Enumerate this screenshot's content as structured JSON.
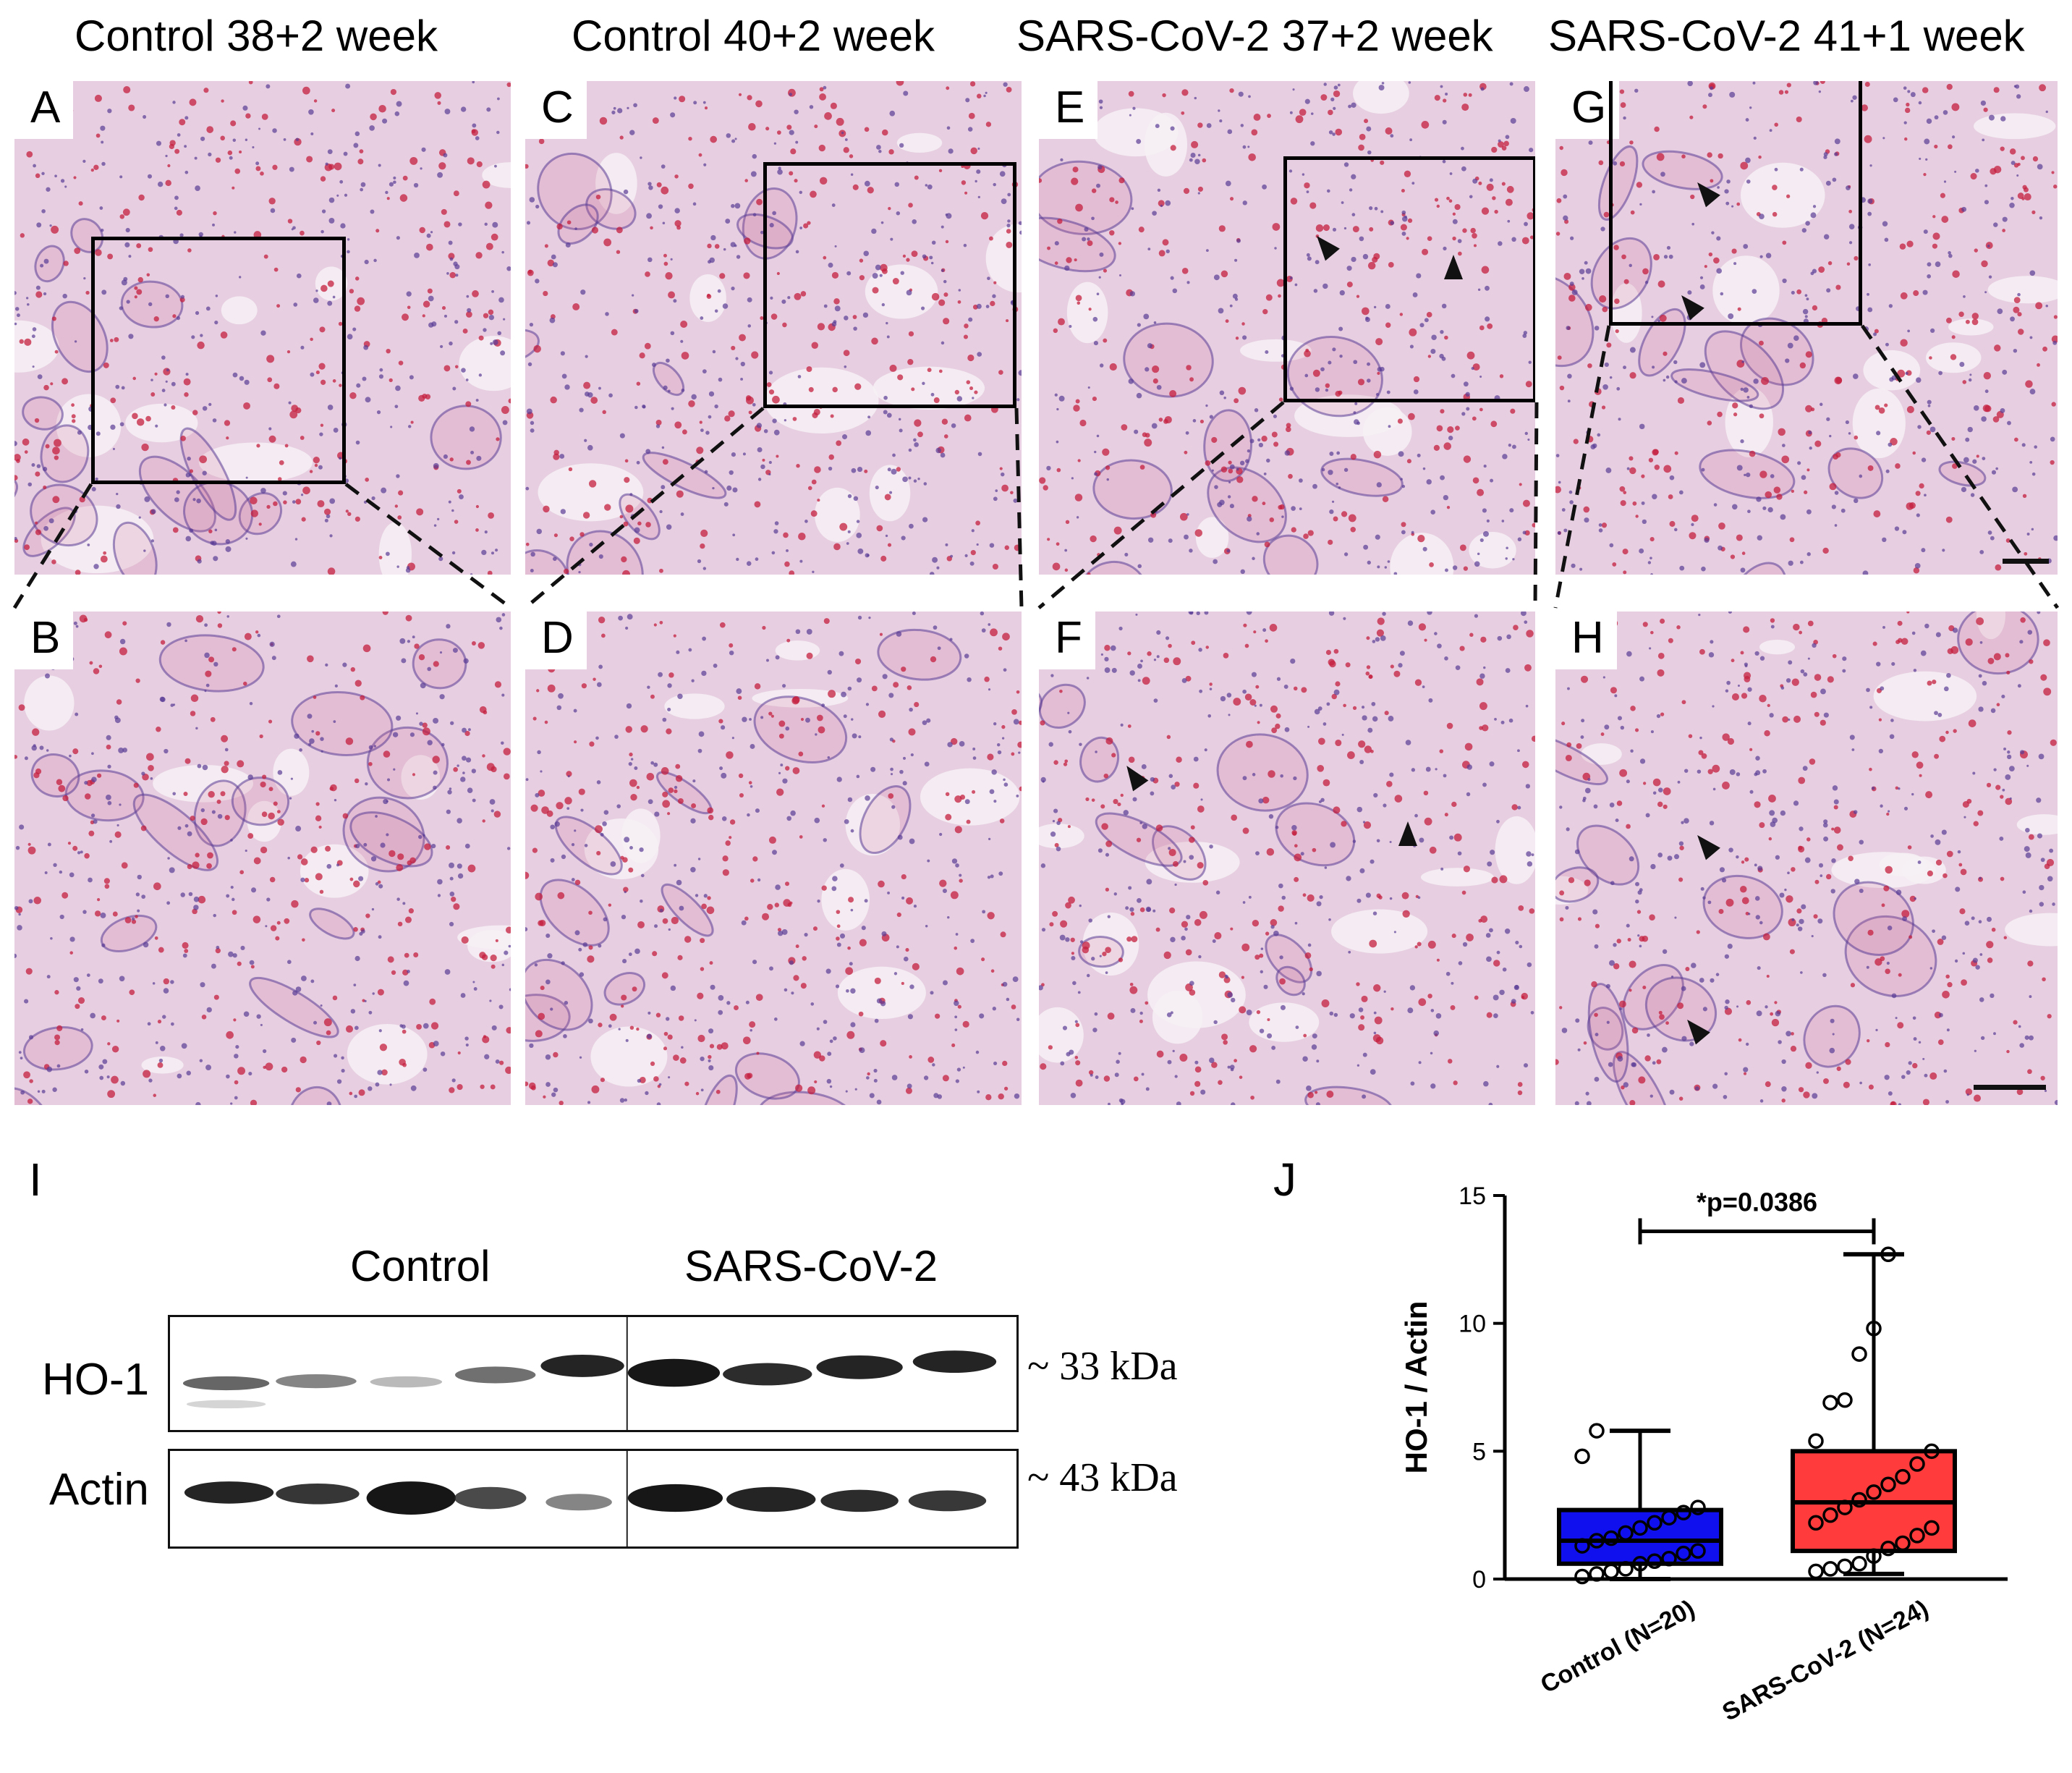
{
  "figure": {
    "column_titles": [
      "Control 38+2 week",
      "Control 40+2 week",
      "SARS-CoV-2 37+2 week",
      "SARS-CoV-2 41+1 week"
    ],
    "panels": {
      "A": "A",
      "B": "B",
      "C": "C",
      "D": "D",
      "E": "E",
      "F": "F",
      "G": "G",
      "H": "H"
    },
    "stain_colors": {
      "background": "#e7cfe1",
      "eosin": "#cf6f97",
      "nuclei": "#5a3c96",
      "rbc": "#c41f3d",
      "lumen": "#f6f1f5"
    }
  },
  "western_blot": {
    "panel_label": "I",
    "groups": [
      "Control",
      "SARS-CoV-2"
    ],
    "rows": [
      {
        "name": "HO-1",
        "size": "~ 33 kDa"
      },
      {
        "name": "Actin",
        "size": "~ 43 kDa"
      }
    ],
    "lanes_per_group": [
      5,
      4
    ]
  },
  "chart_data": {
    "panel_label": "J",
    "type": "box",
    "ylabel": "HO-1 / Actin",
    "ylim": [
      0,
      15
    ],
    "yticks": [
      0,
      5,
      10,
      15
    ],
    "annotation": "*p=0.0386",
    "series": [
      {
        "name": "Control (N=20)",
        "color": "#1010ee",
        "whisker_low": 0.0,
        "q1": 0.6,
        "median": 1.5,
        "q3": 2.7,
        "whisker_high": 5.8,
        "points": [
          0.1,
          0.2,
          0.3,
          0.4,
          0.6,
          0.7,
          0.8,
          1.0,
          1.1,
          1.3,
          1.5,
          1.6,
          1.8,
          2.0,
          2.2,
          2.4,
          2.6,
          2.8,
          4.8,
          5.8
        ]
      },
      {
        "name": "SARS-CoV-2 (N=24)",
        "color": "#ff3b3b",
        "whisker_low": 0.2,
        "q1": 1.1,
        "median": 3.0,
        "q3": 5.0,
        "whisker_high": 12.7,
        "points": [
          0.3,
          0.4,
          0.5,
          0.6,
          0.9,
          1.2,
          1.4,
          1.7,
          2.0,
          2.2,
          2.5,
          2.8,
          3.1,
          3.4,
          3.7,
          4.0,
          4.5,
          5.0,
          5.4,
          6.9,
          7.0,
          8.8,
          9.8,
          12.7
        ]
      }
    ]
  }
}
